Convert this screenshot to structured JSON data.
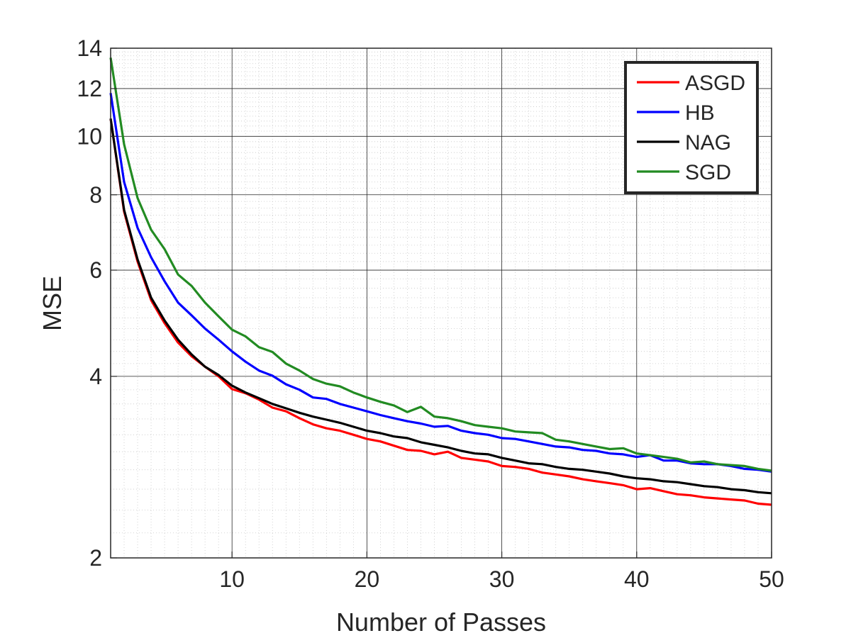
{
  "chart_data": {
    "type": "line",
    "xlabel": "Number of Passes",
    "ylabel": "MSE",
    "xlim": [
      1,
      50
    ],
    "ylim": [
      2,
      14
    ],
    "yscale": "log",
    "grid": true,
    "minor_grid": true,
    "legend_position": "top-right",
    "x_ticks": [
      10,
      20,
      30,
      40,
      50
    ],
    "x_tick_labels": [
      "10",
      "20",
      "30",
      "40",
      "50"
    ],
    "y_ticks": [
      2,
      4,
      6,
      8,
      10,
      12,
      14
    ],
    "y_tick_labels": [
      "2",
      "4",
      "6",
      "8",
      "10",
      "12",
      "14"
    ],
    "x": [
      1,
      2,
      3,
      4,
      5,
      6,
      7,
      8,
      9,
      10,
      11,
      12,
      13,
      14,
      15,
      16,
      17,
      18,
      19,
      20,
      21,
      22,
      23,
      24,
      25,
      26,
      27,
      28,
      29,
      30,
      31,
      32,
      33,
      34,
      35,
      36,
      37,
      38,
      39,
      40,
      41,
      42,
      43,
      44,
      45,
      46,
      47,
      48,
      49,
      50
    ],
    "series": [
      {
        "name": "ASGD",
        "color": "#ff0000",
        "values": [
          10.7,
          7.5,
          6.2,
          5.35,
          4.9,
          4.55,
          4.32,
          4.15,
          4.0,
          3.81,
          3.75,
          3.66,
          3.55,
          3.5,
          3.41,
          3.33,
          3.28,
          3.25,
          3.2,
          3.15,
          3.12,
          3.07,
          3.02,
          3.01,
          2.97,
          3.0,
          2.93,
          2.91,
          2.89,
          2.84,
          2.83,
          2.81,
          2.77,
          2.75,
          2.73,
          2.7,
          2.68,
          2.66,
          2.64,
          2.6,
          2.61,
          2.58,
          2.55,
          2.54,
          2.52,
          2.51,
          2.5,
          2.49,
          2.46,
          2.45
        ]
      },
      {
        "name": "HB",
        "color": "#0000ff",
        "values": [
          11.8,
          8.4,
          7.05,
          6.3,
          5.75,
          5.3,
          5.05,
          4.8,
          4.6,
          4.4,
          4.23,
          4.09,
          4.01,
          3.88,
          3.8,
          3.69,
          3.67,
          3.6,
          3.55,
          3.5,
          3.45,
          3.41,
          3.37,
          3.34,
          3.3,
          3.31,
          3.25,
          3.22,
          3.2,
          3.16,
          3.15,
          3.12,
          3.09,
          3.06,
          3.05,
          3.02,
          3.01,
          2.98,
          2.97,
          2.94,
          2.96,
          2.9,
          2.9,
          2.87,
          2.86,
          2.86,
          2.84,
          2.81,
          2.8,
          2.78
        ]
      },
      {
        "name": "NAG",
        "color": "#000000",
        "values": [
          10.7,
          7.55,
          6.25,
          5.4,
          4.95,
          4.6,
          4.35,
          4.15,
          4.02,
          3.86,
          3.76,
          3.68,
          3.6,
          3.54,
          3.48,
          3.43,
          3.39,
          3.35,
          3.3,
          3.25,
          3.22,
          3.18,
          3.16,
          3.11,
          3.08,
          3.05,
          3.01,
          2.98,
          2.97,
          2.93,
          2.9,
          2.87,
          2.86,
          2.83,
          2.81,
          2.8,
          2.78,
          2.76,
          2.73,
          2.71,
          2.7,
          2.68,
          2.67,
          2.65,
          2.63,
          2.62,
          2.6,
          2.59,
          2.57,
          2.56
        ]
      },
      {
        "name": "SGD",
        "color": "#228b22",
        "values": [
          13.5,
          9.7,
          7.9,
          7.0,
          6.5,
          5.9,
          5.65,
          5.3,
          5.03,
          4.78,
          4.66,
          4.47,
          4.39,
          4.2,
          4.09,
          3.96,
          3.89,
          3.85,
          3.76,
          3.69,
          3.63,
          3.58,
          3.49,
          3.56,
          3.43,
          3.41,
          3.37,
          3.32,
          3.3,
          3.28,
          3.24,
          3.23,
          3.22,
          3.14,
          3.12,
          3.09,
          3.06,
          3.03,
          3.04,
          2.98,
          2.96,
          2.94,
          2.92,
          2.88,
          2.89,
          2.86,
          2.85,
          2.84,
          2.81,
          2.79
        ]
      }
    ]
  }
}
